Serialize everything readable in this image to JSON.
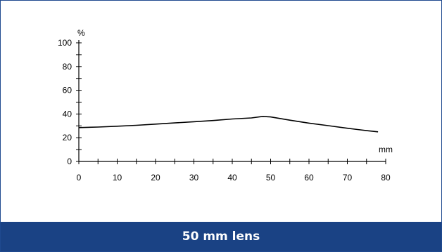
{
  "caption": "50 mm lens",
  "chart_data": {
    "type": "line",
    "title": "",
    "ylabel": "%",
    "xlabel": "mm",
    "xlim": [
      0,
      80
    ],
    "ylim": [
      0,
      100
    ],
    "x_ticks": [
      0,
      10,
      20,
      30,
      40,
      50,
      60,
      70,
      80
    ],
    "y_ticks": [
      0,
      20,
      40,
      60,
      80,
      100
    ],
    "grid": false,
    "series": [
      {
        "x": [
          0,
          5,
          10,
          15,
          20,
          25,
          30,
          35,
          40,
          45,
          48,
          50,
          55,
          60,
          65,
          70,
          75,
          78
        ],
        "values": [
          28.5,
          29,
          29.7,
          30.5,
          31.5,
          32.5,
          33.5,
          34.5,
          35.8,
          36.7,
          38,
          37.5,
          34.8,
          32.3,
          30.2,
          28,
          26,
          25
        ]
      }
    ],
    "colors": {
      "line": "#000000",
      "caption_bg": "#1a4284",
      "border": "#1f4a8f"
    }
  }
}
